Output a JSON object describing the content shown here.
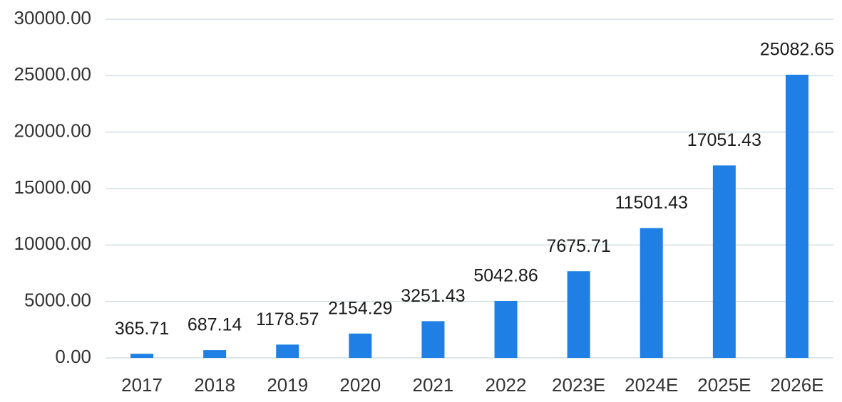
{
  "chart_data": {
    "type": "bar",
    "categories": [
      "2017",
      "2018",
      "2019",
      "2020",
      "2021",
      "2022",
      "2023E",
      "2024E",
      "2025E",
      "2026E"
    ],
    "values": [
      365.71,
      687.14,
      1178.57,
      2154.29,
      3251.43,
      5042.86,
      7675.71,
      11501.43,
      17051.43,
      25082.65
    ],
    "color": "#1f7fe5",
    "ylim": [
      0,
      30000
    ],
    "yticks": [
      {
        "value": 0,
        "label": "0.00"
      },
      {
        "value": 5000,
        "label": "5000.00"
      },
      {
        "value": 10000,
        "label": "10000.00"
      },
      {
        "value": 15000,
        "label": "15000.00"
      },
      {
        "value": 20000,
        "label": "20000.00"
      },
      {
        "value": 25000,
        "label": "25000.00"
      },
      {
        "value": 30000,
        "label": "30000.00"
      }
    ],
    "grid": true
  }
}
